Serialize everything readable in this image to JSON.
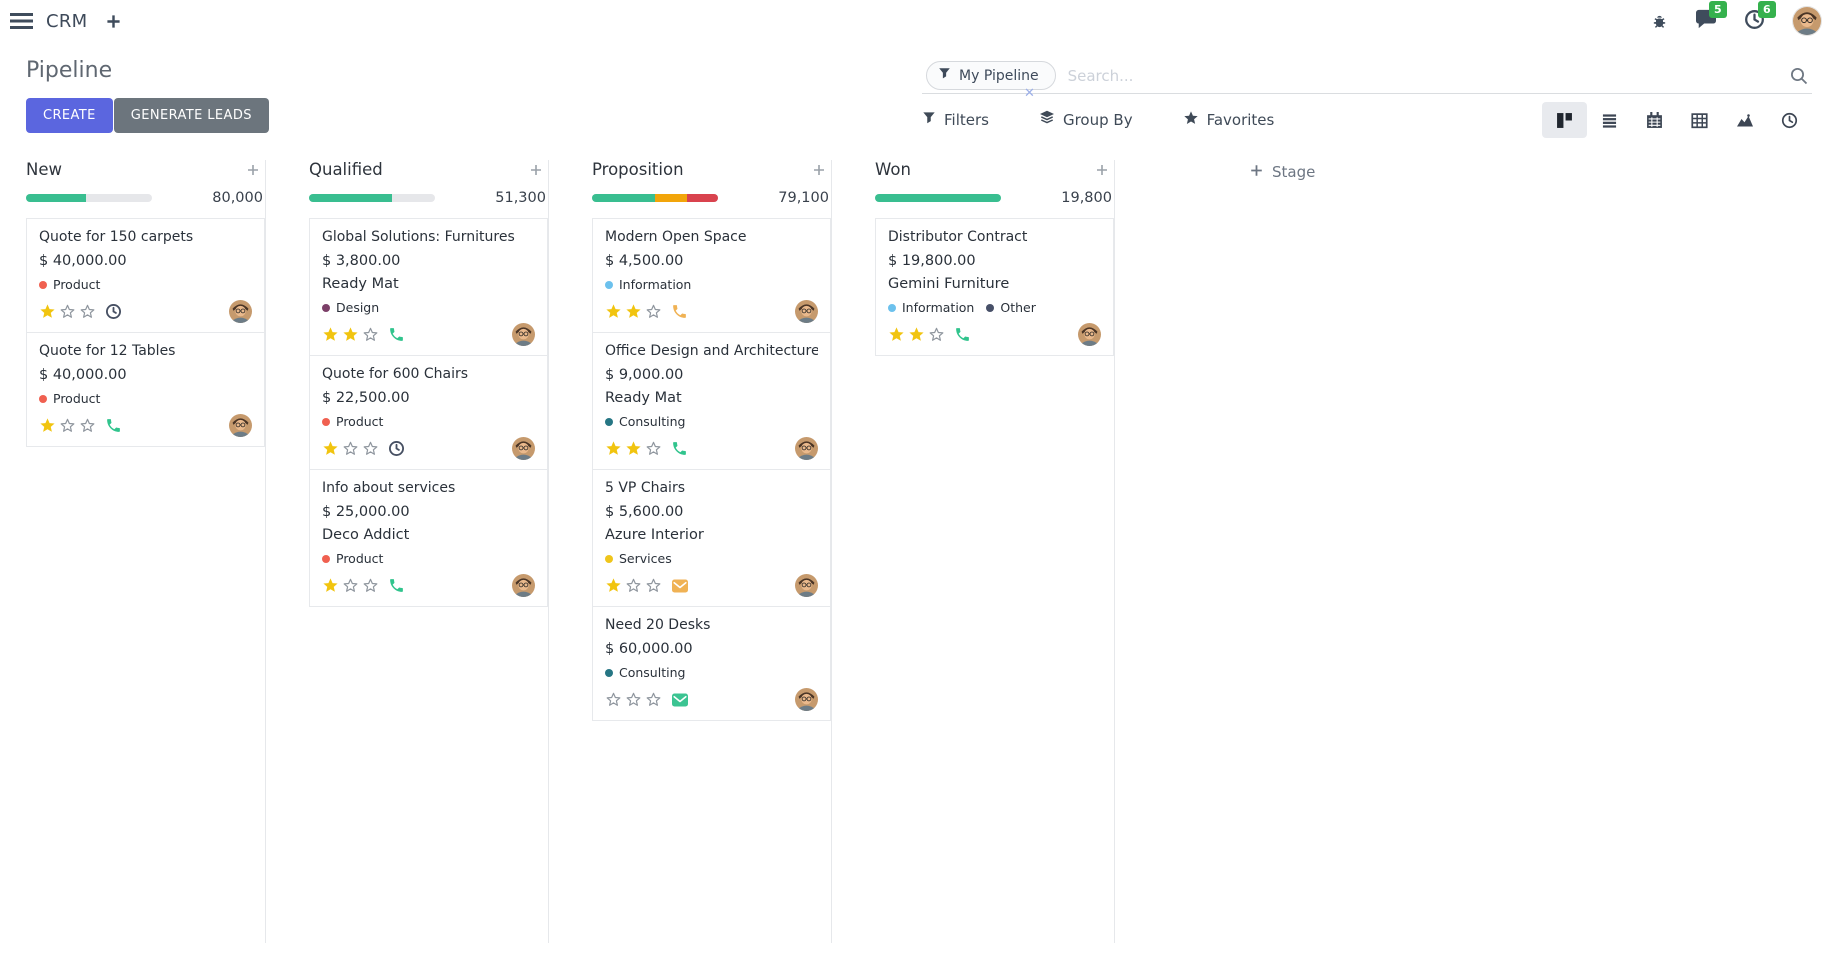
{
  "navbar": {
    "app_name": "CRM",
    "message_count": "5",
    "activity_count": "6"
  },
  "control_panel": {
    "title": "Pipeline",
    "create_label": "CREATE",
    "generate_leads_label": "GENERATE LEADS",
    "search": {
      "facet_label": "My Pipeline",
      "placeholder": "Search...",
      "remove_facet": "✕"
    },
    "menus": {
      "filters": "Filters",
      "group_by": "Group By",
      "favorites": "Favorites"
    },
    "view_switcher": [
      "kanban",
      "list",
      "calendar",
      "pivot",
      "graph",
      "activity"
    ],
    "active_view": "kanban"
  },
  "theme": {
    "primary": "#5B66DF",
    "secondary": "#6C757D",
    "badge_green": "#35B14D",
    "progress_green": "#39BE90",
    "progress_yellow": "#F2A50A",
    "progress_red": "#D9434E",
    "star_gold": "#F1C40F",
    "activity_dark": "#475063",
    "activity_green": "#31C48D",
    "activity_orange": "#F0B254"
  },
  "board": {
    "add_stage_label": "Stage",
    "columns": [
      {
        "name": "New",
        "total": "80,000",
        "progress": [
          {
            "color": "#39BE90",
            "pct": 48
          }
        ],
        "cards": [
          {
            "title": "Quote for 150 carpets",
            "amount": "$ 40,000.00",
            "partner": "",
            "tags": [
              {
                "label": "Product",
                "color": "#F06050"
              }
            ],
            "stars": 1,
            "activity_icon": "clock",
            "activity_color": "#475063"
          },
          {
            "title": "Quote for 12 Tables",
            "amount": "$ 40,000.00",
            "partner": "",
            "tags": [
              {
                "label": "Product",
                "color": "#F06050"
              }
            ],
            "stars": 1,
            "activity_icon": "phone",
            "activity_color": "#31C48D"
          }
        ]
      },
      {
        "name": "Qualified",
        "total": "51,300",
        "progress": [
          {
            "color": "#39BE90",
            "pct": 66
          }
        ],
        "cards": [
          {
            "title": "Global Solutions: Furnitures",
            "amount": "$ 3,800.00",
            "partner": "Ready Mat",
            "tags": [
              {
                "label": "Design",
                "color": "#7C3F68"
              }
            ],
            "stars": 2,
            "activity_icon": "phone",
            "activity_color": "#31C48D"
          },
          {
            "title": "Quote for 600 Chairs",
            "amount": "$ 22,500.00",
            "partner": "",
            "tags": [
              {
                "label": "Product",
                "color": "#F06050"
              }
            ],
            "stars": 1,
            "activity_icon": "clock",
            "activity_color": "#475063"
          },
          {
            "title": "Info about services",
            "amount": "$ 25,000.00",
            "partner": "Deco Addict",
            "tags": [
              {
                "label": "Product",
                "color": "#F06050"
              }
            ],
            "stars": 1,
            "activity_icon": "phone",
            "activity_color": "#31C48D"
          }
        ]
      },
      {
        "name": "Proposition",
        "total": "79,100",
        "progress": [
          {
            "color": "#39BE90",
            "pct": 50
          },
          {
            "color": "#F2A50A",
            "pct": 25
          },
          {
            "color": "#D9434E",
            "pct": 25
          }
        ],
        "cards": [
          {
            "title": "Modern Open Space",
            "amount": "$ 4,500.00",
            "partner": "",
            "tags": [
              {
                "label": "Information",
                "color": "#6CC1ED"
              }
            ],
            "stars": 2,
            "activity_icon": "phone",
            "activity_color": "#F0B254"
          },
          {
            "title": "Office Design and Architecture",
            "amount": "$ 9,000.00",
            "partner": "Ready Mat",
            "tags": [
              {
                "label": "Consulting",
                "color": "#267684"
              }
            ],
            "stars": 2,
            "activity_icon": "phone",
            "activity_color": "#31C48D"
          },
          {
            "title": "5 VP Chairs",
            "amount": "$ 5,600.00",
            "partner": "Azure Interior",
            "tags": [
              {
                "label": "Services",
                "color": "#EFC51B"
              }
            ],
            "stars": 1,
            "activity_icon": "envelope",
            "activity_color": "#F0B254"
          },
          {
            "title": "Need 20 Desks",
            "amount": "$ 60,000.00",
            "partner": "",
            "tags": [
              {
                "label": "Consulting",
                "color": "#267684"
              }
            ],
            "stars": 0,
            "activity_icon": "envelope",
            "activity_color": "#3BC492"
          }
        ]
      },
      {
        "name": "Won",
        "total": "19,800",
        "progress": [
          {
            "color": "#39BE90",
            "pct": 100
          }
        ],
        "cards": [
          {
            "title": "Distributor Contract",
            "amount": "$ 19,800.00",
            "partner": "Gemini Furniture",
            "tags": [
              {
                "label": "Information",
                "color": "#6CC1ED"
              },
              {
                "label": "Other",
                "color": "#475068"
              }
            ],
            "stars": 2,
            "activity_icon": "phone",
            "activity_color": "#31C48D"
          }
        ]
      }
    ]
  }
}
